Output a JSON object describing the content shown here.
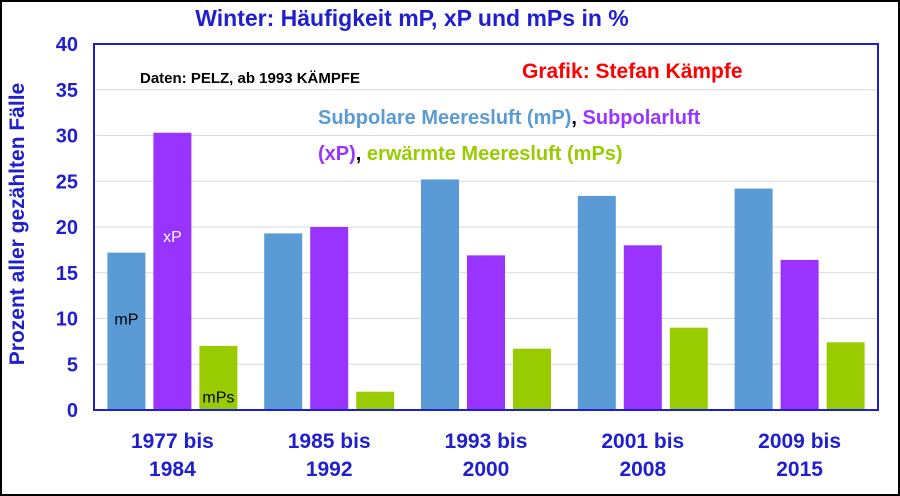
{
  "chart_data": {
    "type": "bar",
    "title": "Winter: Häufigkeit mP, xP und mPs in %",
    "ylabel": "Prozent aller gezählten Fälle",
    "xlabel": "",
    "ylim": [
      0,
      40
    ],
    "yticks": [
      0,
      5,
      10,
      15,
      20,
      25,
      30,
      35,
      40
    ],
    "grid": true,
    "categories": [
      [
        "1977 bis",
        "1984"
      ],
      [
        "1985 bis",
        "1992"
      ],
      [
        "1993 bis",
        "2000"
      ],
      [
        "2001 bis",
        "2008"
      ],
      [
        "2009 bis",
        "2015"
      ]
    ],
    "series": [
      {
        "name": "mP",
        "color": "#5b9bd5",
        "values": [
          17.2,
          19.3,
          25.2,
          23.4,
          24.2
        ]
      },
      {
        "name": "xP",
        "color": "#9933ff",
        "values": [
          30.3,
          20.0,
          16.9,
          18.0,
          16.4
        ]
      },
      {
        "name": "mPs",
        "color": "#99cc00",
        "values": [
          7.0,
          2.0,
          6.7,
          9.0,
          7.4
        ]
      }
    ],
    "bar_labels": [
      "mP",
      "xP",
      "mPs"
    ],
    "annotations": {
      "data_source": "Daten: PELZ, ab 1993 KÄMPFE",
      "credit": "Grafik: Stefan Kämpfe",
      "legend_text": [
        [
          {
            "text": "Subpolare Meeresluft (mP)",
            "color": "#5b9bd5"
          },
          {
            "text": ", ",
            "color": "#000000"
          },
          {
            "text": "Subpolarluft",
            "color": "#9933ff"
          }
        ],
        [
          {
            "text": "(xP)",
            "color": "#9933ff"
          },
          {
            "text": ", ",
            "color": "#000000"
          },
          {
            "text": "erwärmte Meeresluft (mPs)",
            "color": "#99cc00"
          }
        ]
      ]
    },
    "colors": {
      "title": "#1f1fd0",
      "credit": "#ff0000",
      "source": "#000000",
      "axis_border": "#1f1fd0",
      "grid": "#d9d9d9"
    }
  }
}
